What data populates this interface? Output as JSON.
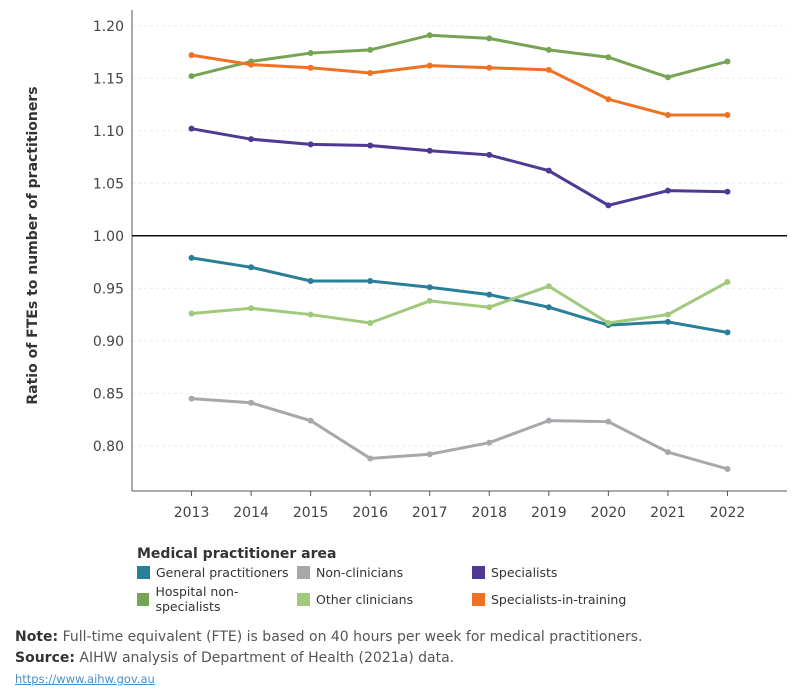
{
  "chart_data": {
    "type": "line",
    "ylabel": "Ratio of FTEs to number of practitioners",
    "xlabel": "",
    "x": [
      2013,
      2014,
      2015,
      2016,
      2017,
      2018,
      2019,
      2020,
      2021,
      2022
    ],
    "x_tick_labels": [
      "2013",
      "2014",
      "2015",
      "2016",
      "2017",
      "2018",
      "2019",
      "2020",
      "2021",
      "2022"
    ],
    "y_ticks": [
      0.8,
      0.85,
      0.9,
      0.95,
      1.0,
      1.05,
      1.1,
      1.15,
      1.2
    ],
    "y_tick_labels": [
      "0.80",
      "0.85",
      "0.90",
      "0.95",
      "1.00",
      "1.05",
      "1.10",
      "1.15",
      "1.20"
    ],
    "ylim": [
      0.757,
      1.215
    ],
    "xlim": [
      2012,
      2023
    ],
    "reference_line": 1.0,
    "grid": true,
    "legend_title": "Medical practitioner area",
    "legend_placement": "bottom",
    "series": [
      {
        "name": "General practitioners",
        "color": "#2a7f98",
        "values": [
          0.979,
          0.97,
          0.957,
          0.957,
          0.951,
          0.944,
          0.932,
          0.915,
          0.918,
          0.908
        ]
      },
      {
        "name": "Non-clinicians",
        "color": "#a6a8ab",
        "values": [
          0.845,
          0.841,
          0.824,
          0.788,
          0.792,
          0.803,
          0.824,
          0.823,
          0.794,
          0.778
        ]
      },
      {
        "name": "Specialists",
        "color": "#4e3a94",
        "values": [
          1.102,
          1.092,
          1.087,
          1.086,
          1.081,
          1.077,
          1.062,
          1.029,
          1.043,
          1.042
        ]
      },
      {
        "name": "Hospital non-specialists",
        "color": "#76a455",
        "values": [
          1.152,
          1.166,
          1.174,
          1.177,
          1.191,
          1.188,
          1.177,
          1.17,
          1.151,
          1.166
        ]
      },
      {
        "name": "Other clinicians",
        "color": "#a1c97b",
        "values": [
          0.926,
          0.931,
          0.925,
          0.917,
          0.938,
          0.932,
          0.952,
          0.917,
          0.925,
          0.956
        ]
      },
      {
        "name": "Specialists-in-training",
        "color": "#f07122",
        "values": [
          1.172,
          1.163,
          1.16,
          1.155,
          1.162,
          1.16,
          1.158,
          1.13,
          1.115,
          1.115
        ]
      }
    ]
  },
  "notes": {
    "note_label": "Note:",
    "note_text": " Full-time equivalent (FTE) is based on 40 hours per week for medical practitioners.",
    "source_label": "Source:",
    "source_text": " AIHW analysis of Department of Health (2021a) data.",
    "link": "https://www.aihw.gov.au"
  }
}
